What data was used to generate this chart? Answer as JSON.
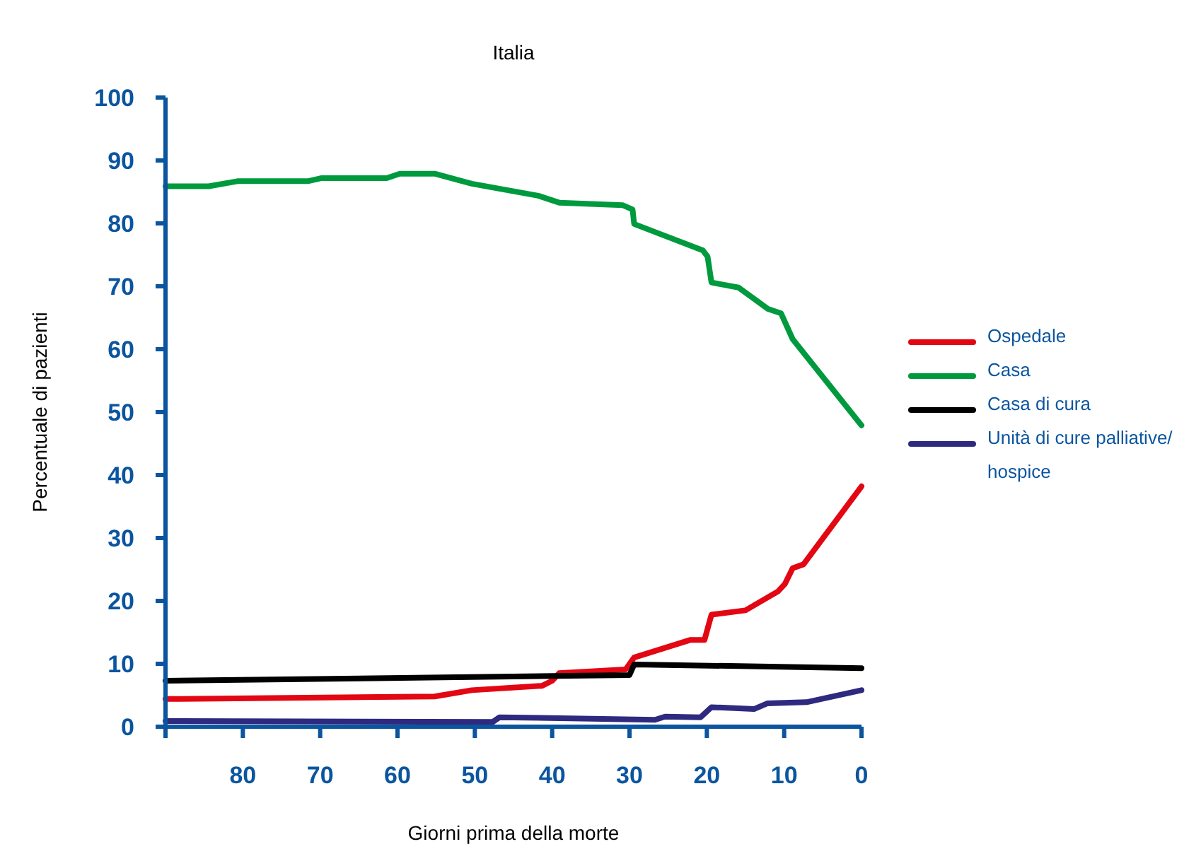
{
  "chart_data": {
    "type": "line",
    "title": "Italia",
    "xlabel": "Giorni prima della morte",
    "ylabel": "Percentuale di pazienti",
    "xlim": [
      90,
      0
    ],
    "xticks": [
      {
        "value": 90,
        "label": null
      },
      80,
      70,
      60,
      50,
      40,
      30,
      20,
      10,
      0
    ],
    "ylim": [
      0,
      100
    ],
    "yticks": [
      0,
      10,
      20,
      30,
      40,
      50,
      60,
      70,
      80,
      90,
      100
    ],
    "grid": false,
    "legend": "right",
    "marker": "none",
    "line_style": "solid",
    "series": [
      {
        "name": "Ospedale",
        "color": "#e30613",
        "x": [
          90,
          55.2,
          50.4,
          41.3,
          40,
          39.1,
          30.5,
          29.4,
          22.1,
          20.3,
          19.4,
          15,
          10.8,
          9.9,
          8.9,
          7.5,
          0
        ],
        "values": [
          4.4,
          4.8,
          5.8,
          6.5,
          7.3,
          8.5,
          9.1,
          11,
          13.8,
          13.8,
          17.8,
          18.5,
          21.5,
          22.7,
          25.2,
          25.8,
          38.2
        ]
      },
      {
        "name": "Casa",
        "color": "#009a3e",
        "x": [
          90,
          84.4,
          80.7,
          71.6,
          69.8,
          61.4,
          59.7,
          55.2,
          50.4,
          41.8,
          39.1,
          30.9,
          29.6,
          29.4,
          20.5,
          19.9,
          19.4,
          15.9,
          12.1,
          10.4,
          8.9,
          0
        ],
        "values": [
          85.9,
          85.9,
          86.7,
          86.7,
          87.2,
          87.2,
          87.9,
          87.9,
          86.3,
          84.4,
          83.3,
          82.9,
          82.2,
          79.9,
          75.7,
          74.7,
          70.6,
          69.8,
          66.4,
          65.7,
          61.6,
          47.9
        ]
      },
      {
        "name": "Casa di cura",
        "color": "#000000",
        "x": [
          90,
          30,
          29.4,
          0
        ],
        "values": [
          7.3,
          8.2,
          9.9,
          9.3
        ]
      },
      {
        "name": "Unità di cure palliative/ hospice",
        "color": "#2e2a7f",
        "x": [
          90,
          47.7,
          46.8,
          26.7,
          25.4,
          20.8,
          19.4,
          13.9,
          12.2,
          7.1,
          0
        ],
        "values": [
          0.9,
          0.75,
          1.5,
          1.1,
          1.6,
          1.5,
          3.1,
          2.8,
          3.7,
          3.9,
          5.8
        ]
      }
    ]
  }
}
